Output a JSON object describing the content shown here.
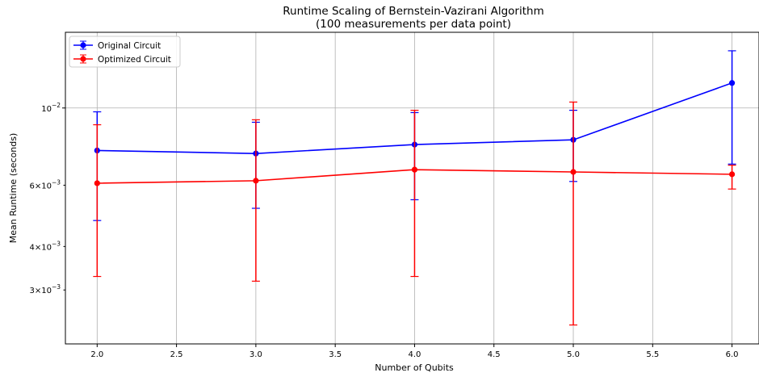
{
  "chart_data": {
    "type": "line",
    "title": "Runtime Scaling of Bernstein-Vazirani Algorithm",
    "subtitle": "(100 measurements per data point)",
    "xlabel": "Number of Qubits",
    "ylabel": "Mean Runtime (seconds)",
    "x": [
      2.0,
      3.0,
      4.0,
      5.0,
      6.0
    ],
    "xlim": [
      1.8,
      6.17
    ],
    "ylim": [
      0.0021,
      0.0165
    ],
    "y_scale": "log",
    "grid": true,
    "legend_position": "top-left",
    "x_ticks": [
      {
        "value": 2.0,
        "label": "2.0"
      },
      {
        "value": 2.5,
        "label": "2.5"
      },
      {
        "value": 3.0,
        "label": "3.0"
      },
      {
        "value": 3.5,
        "label": "3.5"
      },
      {
        "value": 4.0,
        "label": "4.0"
      },
      {
        "value": 4.5,
        "label": "4.5"
      },
      {
        "value": 5.0,
        "label": "5.0"
      },
      {
        "value": 5.5,
        "label": "5.5"
      },
      {
        "value": 6.0,
        "label": "6.0"
      }
    ],
    "y_ticks": [
      {
        "value": 0.003,
        "mantissa": "3",
        "exponent": "−3"
      },
      {
        "value": 0.004,
        "mantissa": "4",
        "exponent": "−3"
      },
      {
        "value": 0.006,
        "mantissa": "6",
        "exponent": "−3"
      },
      {
        "value": 0.01,
        "mantissa": "10",
        "exponent": "−2",
        "base_only": true
      }
    ],
    "series": [
      {
        "name": "Original Circuit",
        "color": "#0000ff",
        "values": [
          0.00755,
          0.0074,
          0.00785,
          0.0081,
          0.0118
        ],
        "err_low": [
          0.00475,
          0.00515,
          0.00545,
          0.00615,
          0.0069
        ],
        "err_high": [
          0.00975,
          0.0091,
          0.0097,
          0.00985,
          0.0146
        ]
      },
      {
        "name": "Optimized Circuit",
        "color": "#ff0000",
        "values": [
          0.00608,
          0.00618,
          0.00665,
          0.00655,
          0.00645
        ],
        "err_low": [
          0.00328,
          0.00318,
          0.00328,
          0.00238,
          0.00585
        ],
        "err_high": [
          0.00895,
          0.00925,
          0.00985,
          0.0104,
          0.00685
        ]
      }
    ]
  }
}
